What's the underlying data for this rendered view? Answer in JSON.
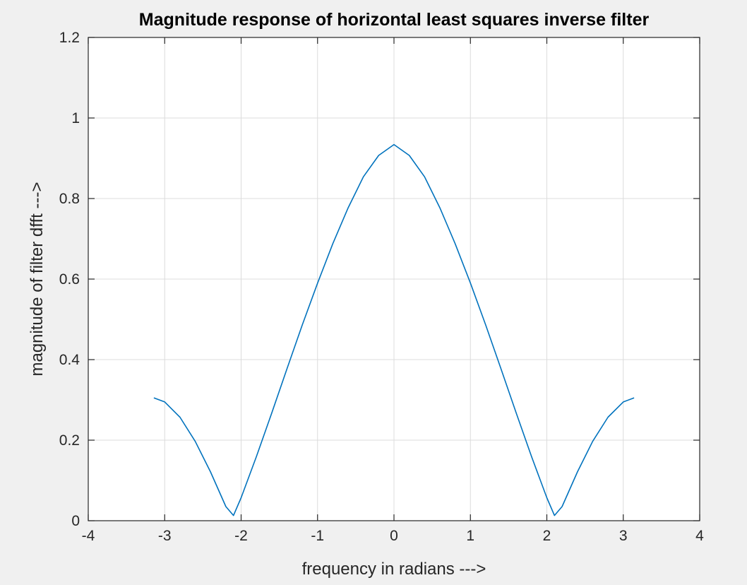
{
  "chart_data": {
    "type": "line",
    "title": "Magnitude response of horizontal least squares inverse filter",
    "xlabel": "frequency in radians --->",
    "ylabel": "magnitude of filter dfft  --->",
    "xlim": [
      -4,
      4
    ],
    "ylim": [
      0,
      1.2
    ],
    "xticks": [
      -4,
      -3,
      -2,
      -1,
      0,
      1,
      2,
      3,
      4
    ],
    "yticks": [
      0,
      0.2,
      0.4,
      0.6,
      0.8,
      1,
      1.2
    ],
    "xtick_labels": [
      "-4",
      "-3",
      "-2",
      "-1",
      "0",
      "1",
      "2",
      "3",
      "4"
    ],
    "ytick_labels": [
      "0",
      "0.2",
      "0.4",
      "0.6",
      "0.8",
      "1",
      "1.2"
    ],
    "grid": true,
    "series": [
      {
        "color": "#0072bd",
        "x": [
          -3.1416,
          -3.0,
          -2.8,
          -2.6,
          -2.4,
          -2.2,
          -2.1,
          -2.0,
          -1.8,
          -1.6,
          -1.4,
          -1.2,
          -1.0,
          -0.8,
          -0.6,
          -0.4,
          -0.2,
          0.0,
          0.2,
          0.4,
          0.6,
          0.8,
          1.0,
          1.2,
          1.4,
          1.6,
          1.8,
          2.0,
          2.1,
          2.2,
          2.4,
          2.6,
          2.8,
          3.0,
          3.1416
        ],
        "y": [
          0.305,
          0.295,
          0.257,
          0.197,
          0.121,
          0.035,
          0.013,
          0.057,
          0.159,
          0.267,
          0.377,
          0.486,
          0.59,
          0.688,
          0.777,
          0.854,
          0.907,
          0.934,
          0.907,
          0.854,
          0.777,
          0.688,
          0.59,
          0.486,
          0.377,
          0.267,
          0.159,
          0.057,
          0.013,
          0.035,
          0.121,
          0.197,
          0.257,
          0.295,
          0.305
        ]
      }
    ]
  }
}
